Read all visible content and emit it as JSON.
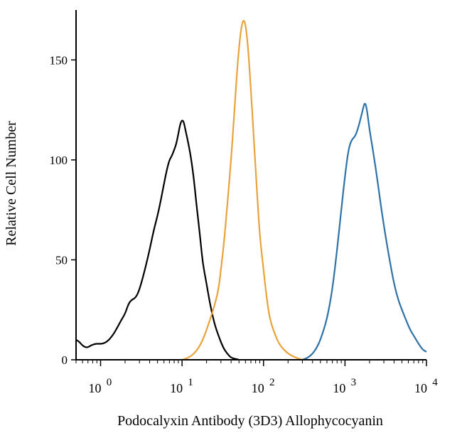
{
  "chart_data": {
    "type": "line",
    "xlabel": "Podocalyxin Antibody (3D3) Allophycocyanin",
    "ylabel": "Relative Cell Number",
    "x_scale": "log",
    "xlim": [
      0.5,
      10000
    ],
    "ylim": [
      0,
      175
    ],
    "grid": false,
    "x_ticks": [
      {
        "value": 1,
        "base": "10",
        "exp": "0"
      },
      {
        "value": 10,
        "base": "10",
        "exp": "1"
      },
      {
        "value": 100,
        "base": "10",
        "exp": "2"
      },
      {
        "value": 1000,
        "base": "10",
        "exp": "3"
      },
      {
        "value": 10000,
        "base": "10",
        "exp": "4"
      }
    ],
    "y_ticks": [
      {
        "value": 0,
        "label": "0"
      },
      {
        "value": 50,
        "label": "50"
      },
      {
        "value": 100,
        "label": "100"
      },
      {
        "value": 150,
        "label": "150"
      }
    ],
    "series": [
      {
        "color": "#000000",
        "points": [
          [
            0.5,
            10
          ],
          [
            0.55,
            9
          ],
          [
            0.6,
            7
          ],
          [
            0.68,
            6
          ],
          [
            0.75,
            7
          ],
          [
            0.85,
            8
          ],
          [
            0.95,
            8
          ],
          [
            1.05,
            8
          ],
          [
            1.2,
            9
          ],
          [
            1.4,
            12
          ],
          [
            1.6,
            16
          ],
          [
            1.8,
            20
          ],
          [
            2.0,
            23
          ],
          [
            2.2,
            28
          ],
          [
            2.4,
            30
          ],
          [
            2.7,
            31
          ],
          [
            3.0,
            35
          ],
          [
            3.5,
            45
          ],
          [
            4.0,
            55
          ],
          [
            4.5,
            65
          ],
          [
            5.0,
            72
          ],
          [
            5.5,
            80
          ],
          [
            6.0,
            88
          ],
          [
            6.5,
            95
          ],
          [
            7.0,
            100
          ],
          [
            7.5,
            102
          ],
          [
            8.0,
            105
          ],
          [
            8.5,
            108
          ],
          [
            9.0,
            113
          ],
          [
            9.5,
            118
          ],
          [
            10.0,
            120
          ],
          [
            10.5,
            119
          ],
          [
            11.0,
            115
          ],
          [
            12.0,
            108
          ],
          [
            13.0,
            100
          ],
          [
            14.0,
            90
          ],
          [
            15.0,
            78
          ],
          [
            16.0,
            68
          ],
          [
            17.0,
            58
          ],
          [
            18.0,
            48
          ],
          [
            20.0,
            38
          ],
          [
            22.0,
            28
          ],
          [
            25.0,
            18
          ],
          [
            28.0,
            12
          ],
          [
            32.0,
            6
          ],
          [
            36.0,
            3
          ],
          [
            40.0,
            1
          ],
          [
            45.0,
            0.5
          ],
          [
            50.0,
            0
          ]
        ]
      },
      {
        "color": "#e8a33c",
        "points": [
          [
            10.0,
            0
          ],
          [
            12.0,
            1
          ],
          [
            14.0,
            3
          ],
          [
            16.0,
            6
          ],
          [
            18.0,
            10
          ],
          [
            20.0,
            15
          ],
          [
            22.0,
            20
          ],
          [
            25.0,
            27
          ],
          [
            28.0,
            35
          ],
          [
            30.0,
            45
          ],
          [
            33.0,
            60
          ],
          [
            36.0,
            78
          ],
          [
            40.0,
            100
          ],
          [
            44.0,
            125
          ],
          [
            48.0,
            148
          ],
          [
            52.0,
            163
          ],
          [
            55.0,
            169
          ],
          [
            58.0,
            170
          ],
          [
            61.0,
            166
          ],
          [
            65.0,
            155
          ],
          [
            70.0,
            135
          ],
          [
            75.0,
            115
          ],
          [
            80.0,
            95
          ],
          [
            85.0,
            78
          ],
          [
            90.0,
            62
          ],
          [
            100.0,
            45
          ],
          [
            110.0,
            30
          ],
          [
            120.0,
            20
          ],
          [
            140.0,
            12
          ],
          [
            160.0,
            7
          ],
          [
            200.0,
            3
          ],
          [
            250.0,
            1
          ],
          [
            300.0,
            0
          ]
        ]
      },
      {
        "color": "#2e72a8",
        "points": [
          [
            300.0,
            0
          ],
          [
            350.0,
            1
          ],
          [
            400.0,
            3
          ],
          [
            450.0,
            6
          ],
          [
            500.0,
            10
          ],
          [
            600.0,
            20
          ],
          [
            700.0,
            35
          ],
          [
            800.0,
            55
          ],
          [
            900.0,
            75
          ],
          [
            1000.0,
            92
          ],
          [
            1100.0,
            105
          ],
          [
            1200.0,
            110
          ],
          [
            1350.0,
            112
          ],
          [
            1500.0,
            118
          ],
          [
            1650.0,
            125
          ],
          [
            1750.0,
            129
          ],
          [
            1850.0,
            126
          ],
          [
            2000.0,
            115
          ],
          [
            2200.0,
            105
          ],
          [
            2500.0,
            90
          ],
          [
            2800.0,
            75
          ],
          [
            3200.0,
            60
          ],
          [
            3600.0,
            48
          ],
          [
            4000.0,
            38
          ],
          [
            4500.0,
            30
          ],
          [
            5000.0,
            25
          ],
          [
            5600.0,
            20
          ],
          [
            6300.0,
            15
          ],
          [
            7000.0,
            12
          ],
          [
            8000.0,
            8
          ],
          [
            9000.0,
            5
          ],
          [
            10000.0,
            4
          ]
        ]
      }
    ]
  }
}
